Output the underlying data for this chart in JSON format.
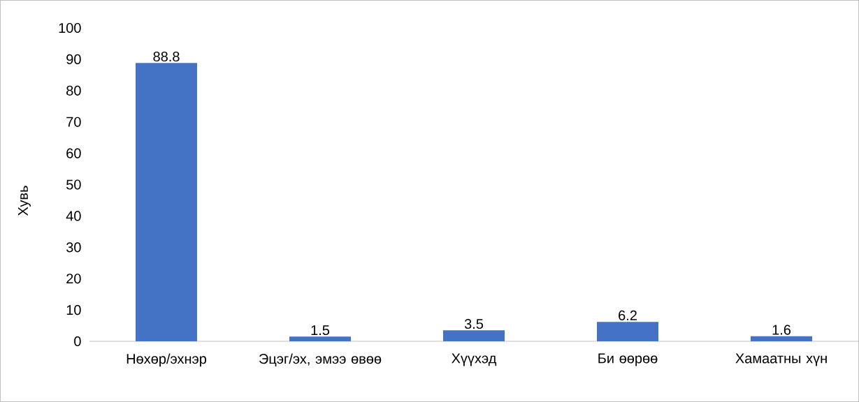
{
  "chart_data": {
    "type": "bar",
    "ylabel": "Хувь",
    "categories": [
      "Нөхөр/эхнэр",
      "Эцэг/эх, эмээ өвөө",
      "Хүүхэд",
      "Би өөрөө",
      "Хамаатны хүн"
    ],
    "values": [
      88.8,
      1.5,
      3.5,
      6.2,
      1.6
    ],
    "color": "#4472c4",
    "ylim": [
      0,
      100
    ],
    "yticks": [
      0,
      10,
      20,
      30,
      40,
      50,
      60,
      70,
      80,
      90,
      100
    ],
    "data_labels": true
  }
}
